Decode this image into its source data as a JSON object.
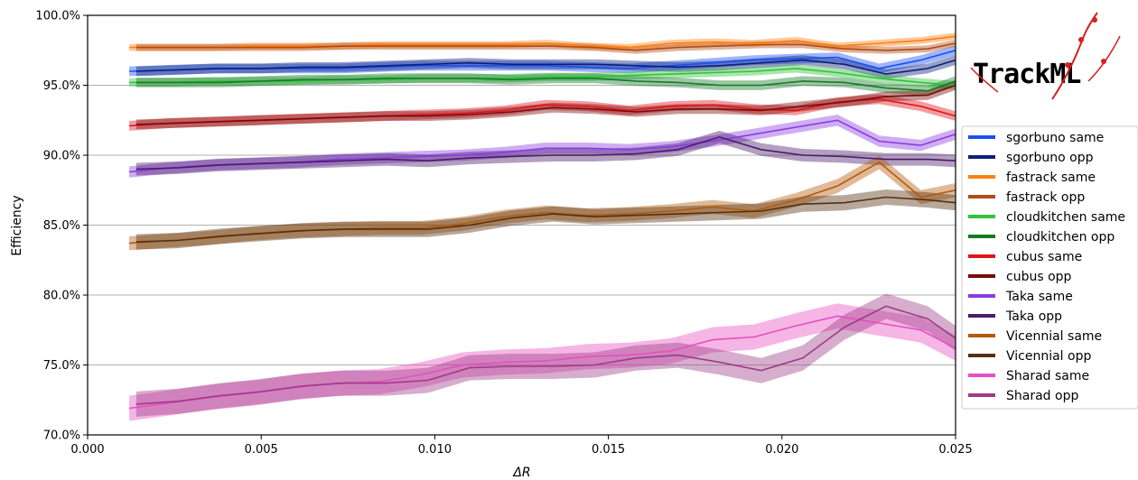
{
  "chart_data": {
    "type": "line",
    "title": "",
    "xlabel": "ΔR",
    "ylabel": "Efficiency",
    "xlim": [
      0.0,
      0.025
    ],
    "ylim": [
      70.0,
      100.0
    ],
    "x_ticks": [
      "0.000",
      "0.005",
      "0.010",
      "0.015",
      "0.020",
      "0.025"
    ],
    "x_tick_values": [
      0.0,
      0.005,
      0.01,
      0.015,
      0.02,
      0.025
    ],
    "y_ticks": [
      "70.0%",
      "75.0%",
      "80.0%",
      "85.0%",
      "90.0%",
      "95.0%",
      "100.0%"
    ],
    "y_tick_values": [
      70,
      75,
      80,
      85,
      90,
      95,
      100
    ],
    "grid": "horizontal",
    "legend_position": "right",
    "logo_text": "TrackML",
    "x_same": [
      0.0012,
      0.0024,
      0.0036,
      0.0048,
      0.006,
      0.0072,
      0.0084,
      0.0096,
      0.0108,
      0.012,
      0.0132,
      0.0144,
      0.0156,
      0.0168,
      0.018,
      0.0192,
      0.0204,
      0.0216,
      0.0228,
      0.024,
      0.025
    ],
    "x_opp": [
      0.0014,
      0.0026,
      0.0038,
      0.005,
      0.0062,
      0.0074,
      0.0086,
      0.0098,
      0.011,
      0.0122,
      0.0134,
      0.0146,
      0.0158,
      0.017,
      0.0182,
      0.0194,
      0.0206,
      0.0218,
      0.023,
      0.0242,
      0.025
    ],
    "series": [
      {
        "name": "sgorbuno same",
        "color": "#1a4ff0",
        "set": "same",
        "band": 0.35,
        "values": [
          96.0,
          96.1,
          96.2,
          96.2,
          96.2,
          96.2,
          96.3,
          96.4,
          96.4,
          96.4,
          96.4,
          96.3,
          96.2,
          96.4,
          96.6,
          96.8,
          96.9,
          97.0,
          96.2,
          96.8,
          97.5
        ]
      },
      {
        "name": "sgorbuno opp",
        "color": "#0a1f7a",
        "set": "opp",
        "band": 0.35,
        "values": [
          96.0,
          96.1,
          96.2,
          96.2,
          96.3,
          96.3,
          96.4,
          96.5,
          96.6,
          96.5,
          96.5,
          96.5,
          96.4,
          96.3,
          96.4,
          96.6,
          96.8,
          96.5,
          95.8,
          96.2,
          96.8
        ]
      },
      {
        "name": "fastrack same",
        "color": "#ff7f0e",
        "set": "same",
        "band": 0.25,
        "values": [
          97.7,
          97.7,
          97.7,
          97.8,
          97.8,
          97.8,
          97.9,
          97.9,
          97.9,
          97.9,
          98.0,
          97.8,
          97.7,
          98.0,
          98.1,
          98.0,
          98.2,
          97.8,
          98.0,
          98.2,
          98.5
        ]
      },
      {
        "name": "fastrack opp",
        "color": "#b34a14",
        "set": "opp",
        "band": 0.25,
        "values": [
          97.7,
          97.7,
          97.7,
          97.7,
          97.7,
          97.8,
          97.8,
          97.8,
          97.8,
          97.8,
          97.8,
          97.7,
          97.5,
          97.7,
          97.8,
          97.9,
          97.9,
          97.6,
          97.5,
          97.6,
          98.0
        ]
      },
      {
        "name": "cloudkitchen same",
        "color": "#2fc23a",
        "set": "same",
        "band": 0.3,
        "values": [
          95.2,
          95.2,
          95.3,
          95.3,
          95.3,
          95.4,
          95.4,
          95.5,
          95.5,
          95.5,
          95.6,
          95.6,
          95.7,
          95.8,
          95.9,
          96.0,
          96.2,
          95.9,
          95.5,
          95.2,
          95.0
        ]
      },
      {
        "name": "cloudkitchen opp",
        "color": "#157a25",
        "set": "opp",
        "band": 0.35,
        "values": [
          95.2,
          95.2,
          95.2,
          95.3,
          95.4,
          95.4,
          95.5,
          95.5,
          95.5,
          95.4,
          95.5,
          95.5,
          95.3,
          95.2,
          95.0,
          95.0,
          95.3,
          95.2,
          94.8,
          94.6,
          95.3
        ]
      },
      {
        "name": "cubus same",
        "color": "#e0141a",
        "set": "same",
        "band": 0.35,
        "values": [
          92.1,
          92.3,
          92.4,
          92.5,
          92.6,
          92.7,
          92.8,
          92.9,
          93.0,
          93.2,
          93.6,
          93.5,
          93.2,
          93.5,
          93.6,
          93.3,
          93.2,
          93.8,
          94.0,
          93.5,
          92.8
        ]
      },
      {
        "name": "cubus opp",
        "color": "#7a0a0a",
        "set": "opp",
        "band": 0.35,
        "values": [
          92.2,
          92.3,
          92.4,
          92.5,
          92.6,
          92.7,
          92.8,
          92.8,
          92.9,
          93.1,
          93.4,
          93.3,
          93.1,
          93.3,
          93.3,
          93.2,
          93.5,
          93.8,
          94.2,
          94.3,
          95.0
        ]
      },
      {
        "name": "Taka same",
        "color": "#8a3be0",
        "set": "same",
        "band": 0.4,
        "values": [
          88.8,
          89.1,
          89.3,
          89.4,
          89.5,
          89.7,
          89.8,
          89.9,
          90.0,
          90.2,
          90.5,
          90.5,
          90.4,
          90.6,
          91.0,
          91.5,
          92.0,
          92.5,
          91.0,
          90.7,
          91.5
        ]
      },
      {
        "name": "Taka opp",
        "color": "#4a1a6a",
        "set": "opp",
        "band": 0.45,
        "values": [
          89.0,
          89.1,
          89.3,
          89.4,
          89.5,
          89.6,
          89.7,
          89.6,
          89.8,
          89.9,
          90.0,
          90.0,
          90.1,
          90.4,
          91.3,
          90.4,
          90.0,
          89.9,
          89.7,
          89.7,
          89.6
        ]
      },
      {
        "name": "Vicennial same",
        "color": "#b35a0a",
        "set": "same",
        "band": 0.5,
        "values": [
          83.7,
          83.9,
          84.1,
          84.4,
          84.6,
          84.7,
          84.8,
          84.8,
          85.1,
          85.6,
          85.9,
          85.7,
          85.8,
          86.0,
          86.3,
          86.0,
          86.8,
          87.8,
          89.5,
          87.0,
          87.5
        ]
      },
      {
        "name": "Vicennial opp",
        "color": "#553010",
        "set": "opp",
        "band": 0.55,
        "values": [
          83.8,
          83.9,
          84.2,
          84.4,
          84.6,
          84.7,
          84.7,
          84.7,
          85.0,
          85.5,
          85.8,
          85.6,
          85.7,
          85.8,
          85.9,
          86.0,
          86.5,
          86.6,
          87.0,
          86.8,
          86.6
        ]
      },
      {
        "name": "Sharad same",
        "color": "#e64fc2",
        "set": "same",
        "band": 0.9,
        "values": [
          71.9,
          72.3,
          72.7,
          73.0,
          73.4,
          73.7,
          73.8,
          74.3,
          75.0,
          75.2,
          75.3,
          75.6,
          75.7,
          76.0,
          76.8,
          77.0,
          77.8,
          78.5,
          78.0,
          77.5,
          76.2
        ]
      },
      {
        "name": "Sharad opp",
        "color": "#9e3b86",
        "set": "opp",
        "band": 0.9,
        "values": [
          72.2,
          72.4,
          72.8,
          73.1,
          73.5,
          73.7,
          73.7,
          73.9,
          74.8,
          74.9,
          74.9,
          75.0,
          75.5,
          75.7,
          75.2,
          74.6,
          75.5,
          77.7,
          79.2,
          78.3,
          76.9
        ]
      }
    ]
  }
}
